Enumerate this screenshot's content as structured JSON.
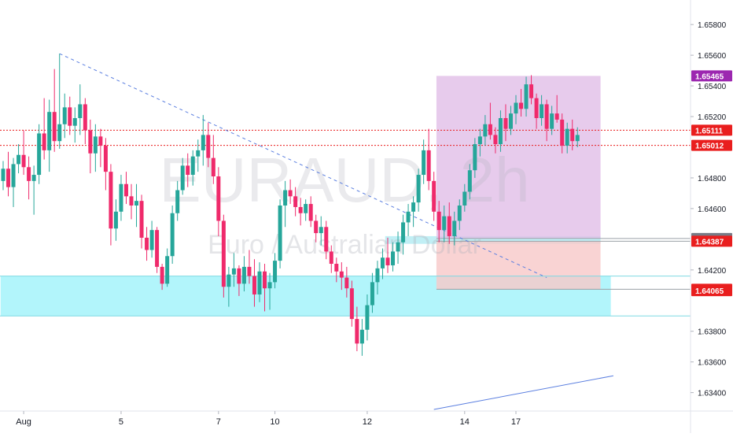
{
  "chart_data": {
    "type": "candlestick",
    "watermark": {
      "symbol": "EURAUD, 2h",
      "description": "Euro / Australian Dollar"
    },
    "x_axis": {
      "labels": [
        "Aug",
        "5",
        "7",
        "10",
        "12",
        "14",
        "17"
      ],
      "label_bar_index": [
        4,
        23,
        42,
        53,
        71,
        90,
        100
      ]
    },
    "y_axis": {
      "ticks": [
        "1.65800",
        "1.65600",
        "1.65400",
        "1.65200",
        "1.64800",
        "1.64600",
        "1.64200",
        "1.63800",
        "1.63600",
        "1.63400"
      ],
      "range": [
        1.6328,
        1.6596
      ]
    },
    "price_tags": [
      {
        "value": "1.65465",
        "color": "#9c27b0"
      },
      {
        "value": "1.65111",
        "color": "#e91e1e"
      },
      {
        "value": "1.65012",
        "color": "#e91e1e"
      },
      {
        "value": "1.64405",
        "color": "#787b86"
      },
      {
        "value": "1.64387",
        "color": "#e91e1e"
      },
      {
        "value": "1.64074",
        "color": "#e91e1e"
      },
      {
        "value": "1.64065",
        "color": "#e91e1e"
      }
    ],
    "horizontal_lines": [
      {
        "price": 1.65111,
        "style": "dotted",
        "color": "#e91e1e"
      },
      {
        "price": 1.65012,
        "style": "dotted",
        "color": "#e91e1e"
      },
      {
        "price": 1.64405,
        "style": "solid",
        "color": "#9aa0a6"
      },
      {
        "price": 1.64387,
        "style": "solid",
        "color": "#9aa0a6"
      },
      {
        "price": 1.64074,
        "style": "solid",
        "color": "#9aa0a6"
      }
    ],
    "zones": [
      {
        "name": "support",
        "price_top": 1.6416,
        "price_bottom": 1.639,
        "bar_start": 0,
        "bar_end": 118,
        "color": "#9ff3fa"
      },
      {
        "name": "resistance",
        "price_top": 1.6442,
        "price_bottom": 1.6437,
        "bar_start": 75,
        "bar_end": 116,
        "color": "#b2ebf2"
      },
      {
        "name": "position-profit",
        "price_top": 1.65465,
        "price_bottom": 1.64405,
        "bar_start": 85,
        "bar_end": 116,
        "color": "#e1bee7"
      },
      {
        "name": "position-loss",
        "price_top": 1.64387,
        "price_bottom": 1.64074,
        "bar_start": 85,
        "bar_end": 116,
        "color": "#f8c8c8"
      }
    ],
    "trendlines": [
      {
        "name": "downtrend",
        "style": "dashed",
        "color": "#5b7fe0",
        "from": {
          "bar": 11,
          "price": 1.6561
        },
        "to": {
          "bar": 106,
          "price": 1.6415
        }
      },
      {
        "name": "uptrend",
        "style": "solid",
        "color": "#5b7fe0",
        "from": {
          "bar": 84,
          "price": 1.6329
        },
        "to": {
          "bar": 119,
          "price": 1.6351
        }
      }
    ],
    "candles": [
      [
        1.6478,
        1.6491,
        1.6472,
        1.6486
      ],
      [
        1.6486,
        1.6497,
        1.6468,
        1.6474
      ],
      [
        1.6474,
        1.6493,
        1.6461,
        1.6489
      ],
      [
        1.6489,
        1.6502,
        1.6483,
        1.6495
      ],
      [
        1.6495,
        1.6511,
        1.6482,
        1.6487
      ],
      [
        1.6487,
        1.6494,
        1.6466,
        1.6478
      ],
      [
        1.6478,
        1.6488,
        1.6456,
        1.6482
      ],
      [
        1.6482,
        1.6515,
        1.6476,
        1.6509
      ],
      [
        1.6509,
        1.6532,
        1.6492,
        1.6498
      ],
      [
        1.6498,
        1.6531,
        1.6484,
        1.6523
      ],
      [
        1.6523,
        1.6551,
        1.6497,
        1.6504
      ],
      [
        1.6504,
        1.6561,
        1.6499,
        1.6515
      ],
      [
        1.6515,
        1.6535,
        1.6506,
        1.6526
      ],
      [
        1.6526,
        1.6533,
        1.6508,
        1.6514
      ],
      [
        1.6514,
        1.6526,
        1.6503,
        1.6519
      ],
      [
        1.6519,
        1.6541,
        1.6508,
        1.6528
      ],
      [
        1.6528,
        1.6532,
        1.6502,
        1.6511
      ],
      [
        1.6511,
        1.6518,
        1.6483,
        1.6496
      ],
      [
        1.6496,
        1.6515,
        1.6484,
        1.6507
      ],
      [
        1.6507,
        1.6512,
        1.6487,
        1.6501
      ],
      [
        1.6501,
        1.6506,
        1.6472,
        1.6484
      ],
      [
        1.6484,
        1.6489,
        1.6436,
        1.6447
      ],
      [
        1.6447,
        1.6466,
        1.6439,
        1.6458
      ],
      [
        1.6458,
        1.6482,
        1.6452,
        1.6476
      ],
      [
        1.6476,
        1.6484,
        1.6463,
        1.6468
      ],
      [
        1.6468,
        1.6476,
        1.6453,
        1.6462
      ],
      [
        1.6462,
        1.6476,
        1.6448,
        1.6465
      ],
      [
        1.6465,
        1.6469,
        1.6434,
        1.6441
      ],
      [
        1.6441,
        1.6448,
        1.6426,
        1.6433
      ],
      [
        1.6433,
        1.6452,
        1.6428,
        1.6446
      ],
      [
        1.6446,
        1.6448,
        1.6418,
        1.6422
      ],
      [
        1.6422,
        1.6424,
        1.6407,
        1.6411
      ],
      [
        1.6411,
        1.6434,
        1.6409,
        1.6429
      ],
      [
        1.6429,
        1.6462,
        1.6424,
        1.6457
      ],
      [
        1.6457,
        1.6478,
        1.6452,
        1.6472
      ],
      [
        1.6472,
        1.6493,
        1.6469,
        1.6488
      ],
      [
        1.6488,
        1.6496,
        1.6474,
        1.6482
      ],
      [
        1.6482,
        1.6498,
        1.6475,
        1.6494
      ],
      [
        1.6494,
        1.6505,
        1.6484,
        1.6498
      ],
      [
        1.6498,
        1.6521,
        1.6488,
        1.6508
      ],
      [
        1.6508,
        1.6516,
        1.6487,
        1.6493
      ],
      [
        1.6493,
        1.6508,
        1.6476,
        1.6481
      ],
      [
        1.6481,
        1.6487,
        1.6442,
        1.6452
      ],
      [
        1.6452,
        1.6456,
        1.6402,
        1.6409
      ],
      [
        1.6409,
        1.6422,
        1.6396,
        1.6417
      ],
      [
        1.6417,
        1.6431,
        1.6409,
        1.6421
      ],
      [
        1.6421,
        1.6423,
        1.6403,
        1.6411
      ],
      [
        1.6411,
        1.6429,
        1.6406,
        1.6422
      ],
      [
        1.6422,
        1.6433,
        1.6411,
        1.6416
      ],
      [
        1.6416,
        1.6427,
        1.6396,
        1.6404
      ],
      [
        1.6404,
        1.6425,
        1.6399,
        1.6419
      ],
      [
        1.6419,
        1.6424,
        1.6393,
        1.6408
      ],
      [
        1.6408,
        1.6418,
        1.6394,
        1.6412
      ],
      [
        1.6412,
        1.6431,
        1.6408,
        1.6426
      ],
      [
        1.6426,
        1.6466,
        1.6421,
        1.6462
      ],
      [
        1.6462,
        1.6478,
        1.6448,
        1.6472
      ],
      [
        1.6472,
        1.6479,
        1.6463,
        1.6468
      ],
      [
        1.6468,
        1.6474,
        1.6455,
        1.6461
      ],
      [
        1.6461,
        1.6467,
        1.6449,
        1.6457
      ],
      [
        1.6457,
        1.6466,
        1.6452,
        1.6463
      ],
      [
        1.6463,
        1.6468,
        1.6448,
        1.6452
      ],
      [
        1.6452,
        1.6456,
        1.6438,
        1.6444
      ],
      [
        1.6444,
        1.6455,
        1.6436,
        1.6448
      ],
      [
        1.6448,
        1.6452,
        1.6427,
        1.6432
      ],
      [
        1.6432,
        1.6436,
        1.6418,
        1.6424
      ],
      [
        1.6424,
        1.6428,
        1.6412,
        1.6419
      ],
      [
        1.6419,
        1.6425,
        1.6407,
        1.6415
      ],
      [
        1.6415,
        1.6422,
        1.6402,
        1.6408
      ],
      [
        1.6408,
        1.6413,
        1.6383,
        1.6388
      ],
      [
        1.6388,
        1.6396,
        1.6367,
        1.6372
      ],
      [
        1.6372,
        1.6388,
        1.6364,
        1.6381
      ],
      [
        1.6381,
        1.6404,
        1.6374,
        1.6397
      ],
      [
        1.6397,
        1.6418,
        1.6392,
        1.6412
      ],
      [
        1.6412,
        1.6426,
        1.6404,
        1.6421
      ],
      [
        1.6421,
        1.6434,
        1.6414,
        1.6428
      ],
      [
        1.6428,
        1.6441,
        1.6418,
        1.6423
      ],
      [
        1.6423,
        1.6438,
        1.6419,
        1.6432
      ],
      [
        1.6432,
        1.6445,
        1.6424,
        1.6438
      ],
      [
        1.6438,
        1.6456,
        1.643,
        1.6451
      ],
      [
        1.6451,
        1.6463,
        1.6442,
        1.6458
      ],
      [
        1.6458,
        1.6468,
        1.6448,
        1.6464
      ],
      [
        1.6464,
        1.6486,
        1.6458,
        1.6482
      ],
      [
        1.6482,
        1.6505,
        1.6476,
        1.6498
      ],
      [
        1.6498,
        1.6512,
        1.6472,
        1.6478
      ],
      [
        1.6478,
        1.6484,
        1.6452,
        1.6458
      ],
      [
        1.6458,
        1.6465,
        1.6438,
        1.6446
      ],
      [
        1.6446,
        1.6462,
        1.6438,
        1.6455
      ],
      [
        1.6455,
        1.6464,
        1.6437,
        1.6442
      ],
      [
        1.6442,
        1.6458,
        1.6436,
        1.6452
      ],
      [
        1.6452,
        1.6466,
        1.6446,
        1.6462
      ],
      [
        1.6462,
        1.6476,
        1.6458,
        1.6471
      ],
      [
        1.6471,
        1.6489,
        1.6466,
        1.6485
      ],
      [
        1.6485,
        1.6506,
        1.648,
        1.6502
      ],
      [
        1.6502,
        1.6512,
        1.6494,
        1.6507
      ],
      [
        1.6507,
        1.6521,
        1.6501,
        1.6515
      ],
      [
        1.6515,
        1.6529,
        1.6505,
        1.6508
      ],
      [
        1.6508,
        1.6513,
        1.6496,
        1.6502
      ],
      [
        1.6502,
        1.6524,
        1.6497,
        1.6519
      ],
      [
        1.6519,
        1.6528,
        1.6504,
        1.6512
      ],
      [
        1.6512,
        1.6527,
        1.6508,
        1.6522
      ],
      [
        1.6522,
        1.6534,
        1.6515,
        1.6529
      ],
      [
        1.6529,
        1.6538,
        1.652,
        1.6525
      ],
      [
        1.6525,
        1.6546,
        1.652,
        1.6541
      ],
      [
        1.6541,
        1.6547,
        1.6528,
        1.6532
      ],
      [
        1.6532,
        1.6535,
        1.6512,
        1.6519
      ],
      [
        1.6519,
        1.6534,
        1.6514,
        1.6528
      ],
      [
        1.6528,
        1.6531,
        1.6504,
        1.6512
      ],
      [
        1.6512,
        1.6527,
        1.6508,
        1.6522
      ],
      [
        1.6522,
        1.6534,
        1.6516,
        1.6518
      ],
      [
        1.6518,
        1.6522,
        1.6496,
        1.6501
      ],
      [
        1.6501,
        1.6516,
        1.6496,
        1.6512
      ],
      [
        1.6512,
        1.6518,
        1.6498,
        1.6504
      ],
      [
        1.6504,
        1.6513,
        1.65,
        1.6508
      ]
    ]
  }
}
